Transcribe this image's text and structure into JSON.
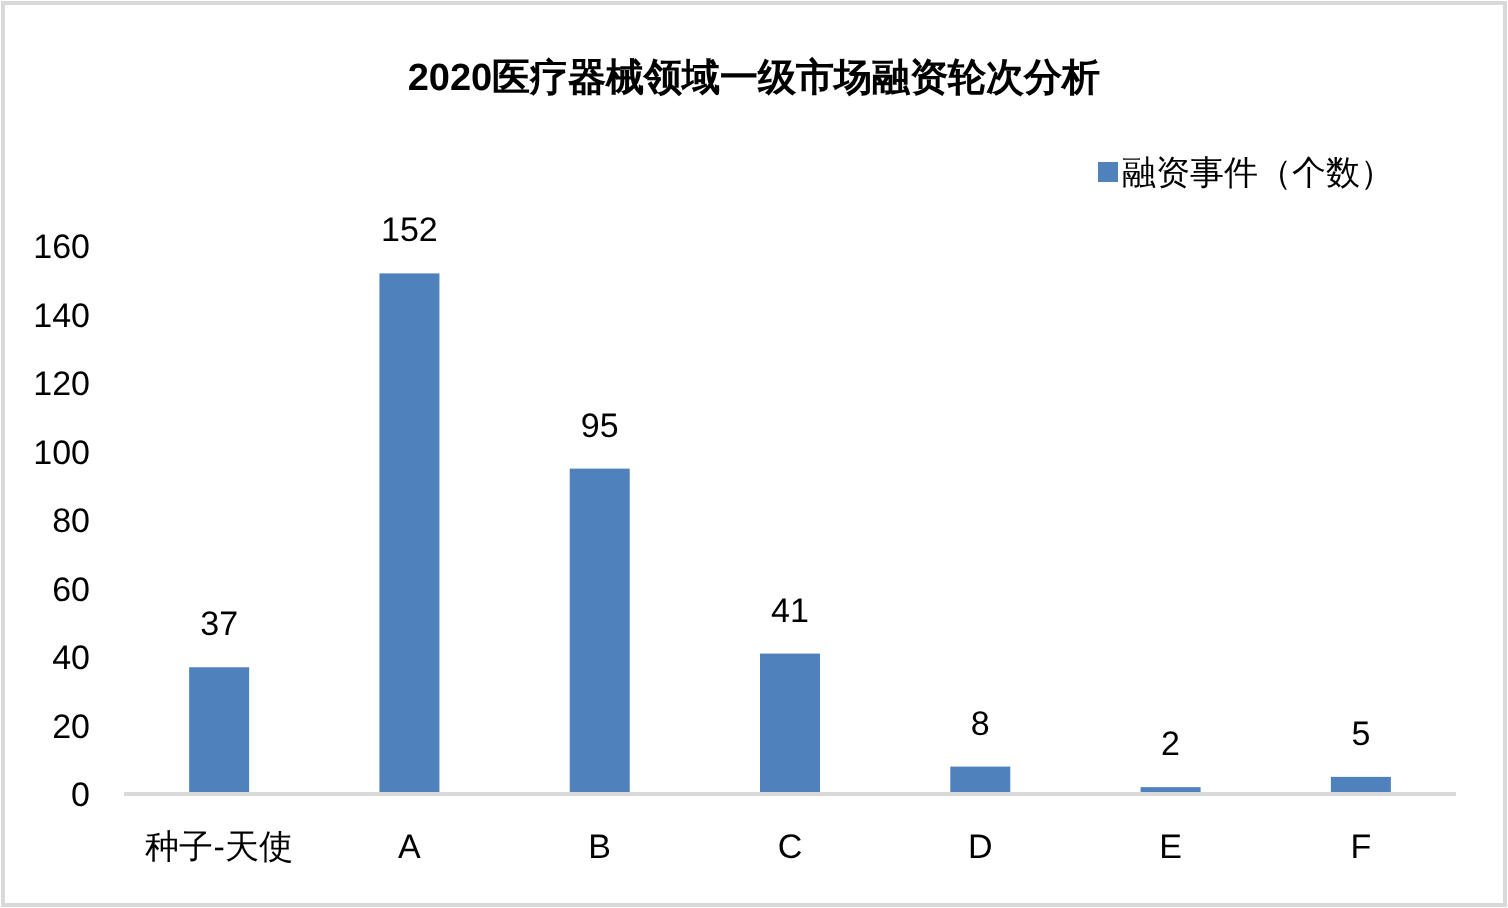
{
  "chart_data": {
    "type": "bar",
    "title": "2020医疗器械领域一级市场融资轮次分析",
    "categories": [
      "种子-天使",
      "A",
      "B",
      "C",
      "D",
      "E",
      "F"
    ],
    "series": [
      {
        "name": "融资事件（个数）",
        "color": "#4f81bd",
        "values": [
          37,
          152,
          95,
          41,
          8,
          2,
          5
        ]
      }
    ],
    "ylim": [
      0,
      160
    ],
    "yticks": [
      0,
      20,
      40,
      60,
      80,
      100,
      120,
      140,
      160
    ],
    "data_labels": true,
    "legend": "top right"
  }
}
